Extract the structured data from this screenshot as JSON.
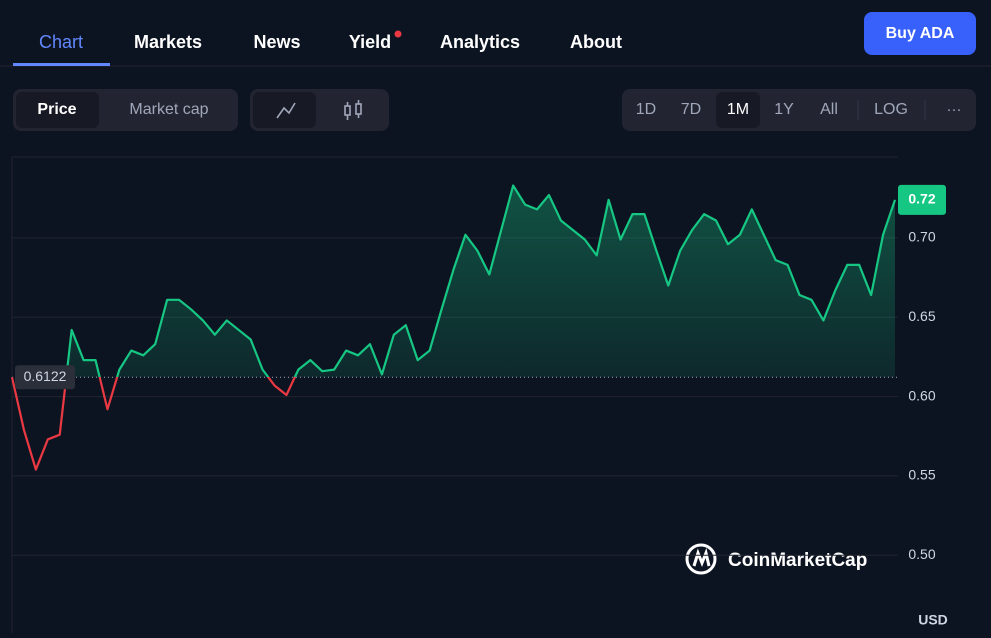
{
  "nav": {
    "tabs": [
      "Chart",
      "Markets",
      "News",
      "Yield",
      "Analytics",
      "About"
    ],
    "active": 0,
    "button": "Buy ADA"
  },
  "toolbar": {
    "modes": [
      "Price",
      "Market cap"
    ],
    "active_mode": 0,
    "ranges": [
      "1D",
      "7D",
      "1M",
      "1Y",
      "All",
      "LOG"
    ],
    "active_range": 2,
    "more": "···"
  },
  "chart_data": {
    "type": "line",
    "values": [
      0.6122,
      0.579,
      0.554,
      0.573,
      0.576,
      0.642,
      0.623,
      0.623,
      0.592,
      0.617,
      0.629,
      0.626,
      0.633,
      0.661,
      0.661,
      0.655,
      0.648,
      0.639,
      0.648,
      0.642,
      0.636,
      0.617,
      0.607,
      0.601,
      0.617,
      0.623,
      0.616,
      0.617,
      0.629,
      0.626,
      0.633,
      0.614,
      0.639,
      0.645,
      0.623,
      0.629,
      0.655,
      0.68,
      0.702,
      0.692,
      0.677,
      0.705,
      0.733,
      0.721,
      0.718,
      0.727,
      0.711,
      0.705,
      0.699,
      0.689,
      0.724,
      0.699,
      0.715,
      0.715,
      0.692,
      0.67,
      0.692,
      0.705,
      0.715,
      0.711,
      0.696,
      0.702,
      0.718,
      0.702,
      0.686,
      0.683,
      0.664,
      0.661,
      0.648,
      0.667,
      0.683,
      0.683,
      0.664,
      0.702,
      0.724
    ],
    "ylim": [
      0.451,
      0.751
    ],
    "yticks": [
      {
        "value": 0.5,
        "label": "0.50"
      },
      0.55,
      {
        "value": 0.6,
        "label": "0.60"
      },
      0.65,
      {
        "value": 0.7,
        "label": "0.70"
      }
    ],
    "grid": true,
    "up_color": "#16c784",
    "down_color": "#ea3943",
    "baseline": 0.6122,
    "last_label": "0.72",
    "currency": "USD",
    "watermark": "CoinMarketCap"
  }
}
